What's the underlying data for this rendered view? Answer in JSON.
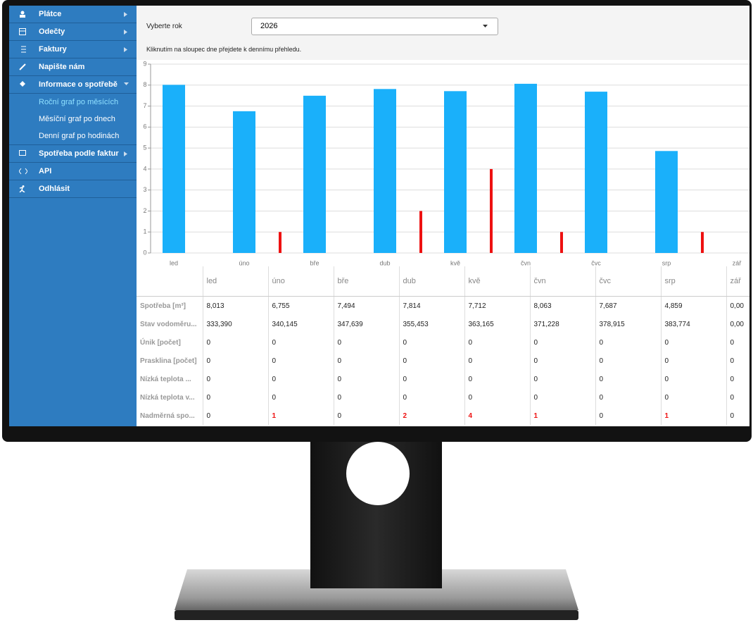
{
  "sidebar": {
    "items": [
      {
        "label": "Plátce"
      },
      {
        "label": "Odečty"
      },
      {
        "label": "Faktury"
      },
      {
        "label": "Napište nám"
      },
      {
        "label": "Informace o spotřebě"
      },
      {
        "label": "Spotřeba podle faktur"
      },
      {
        "label": "API"
      },
      {
        "label": "Odhlásit"
      }
    ],
    "submenu": [
      "Roční graf po měsících",
      "Měsíční graf po dnech",
      "Denní graf po hodinách"
    ]
  },
  "form": {
    "label": "Vyberte rok",
    "selected": "2026"
  },
  "hint": "Kliknutím na sloupec dne přejdete k dennímu přehledu.",
  "chart_data": {
    "type": "bar",
    "categories": [
      "led",
      "úno",
      "bře",
      "dub",
      "kvě",
      "čvn",
      "čvc",
      "srp",
      "zář"
    ],
    "series": [
      {
        "color": "#1ab0fa",
        "values": [
          8.013,
          6.755,
          7.494,
          7.814,
          7.712,
          8.063,
          7.687,
          4.859,
          0
        ]
      },
      {
        "color": "#ee1111",
        "values": [
          0,
          1,
          0,
          2,
          4,
          1,
          0,
          1,
          0
        ]
      }
    ],
    "ylim": [
      0,
      9
    ],
    "yticks": [
      0,
      1,
      2,
      3,
      4,
      5,
      6,
      7,
      8,
      9
    ],
    "grid": true
  },
  "table": {
    "columns": [
      "led",
      "úno",
      "bře",
      "dub",
      "kvě",
      "čvn",
      "čvc",
      "srp",
      "zář"
    ],
    "rows": [
      {
        "header": "Spotřeba [m³]",
        "cells": [
          "8,013",
          "6,755",
          "7,494",
          "7,814",
          "7,712",
          "8,063",
          "7,687",
          "4,859",
          "0,00"
        ]
      },
      {
        "header": "Stav vodoměru...",
        "cells": [
          "333,390",
          "340,145",
          "347,639",
          "355,453",
          "363,165",
          "371,228",
          "378,915",
          "383,774",
          "0,00"
        ]
      },
      {
        "header": "Únik [počet]",
        "cells": [
          "0",
          "0",
          "0",
          "0",
          "0",
          "0",
          "0",
          "0",
          "0"
        ]
      },
      {
        "header": "Prasklina [počet]",
        "cells": [
          "0",
          "0",
          "0",
          "0",
          "0",
          "0",
          "0",
          "0",
          "0"
        ]
      },
      {
        "header": "Nízká teplota ...",
        "cells": [
          "0",
          "0",
          "0",
          "0",
          "0",
          "0",
          "0",
          "0",
          "0"
        ]
      },
      {
        "header": "Nízká teplota v...",
        "cells": [
          "0",
          "0",
          "0",
          "0",
          "0",
          "0",
          "0",
          "0",
          "0"
        ]
      },
      {
        "header": "Nadměrná spo...",
        "cells": [
          "0",
          "1",
          "0",
          "2",
          "4",
          "1",
          "0",
          "1",
          "0"
        ]
      }
    ]
  }
}
